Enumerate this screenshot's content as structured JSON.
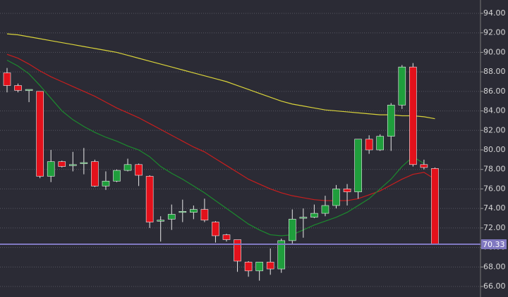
{
  "chart_data": {
    "type": "candlestick",
    "ylim": [
      64.92,
      95.37
    ],
    "yticks": [
      {
        "value": 94,
        "label": "94.00"
      },
      {
        "value": 92,
        "label": "92.00"
      },
      {
        "value": 90,
        "label": "90.00"
      },
      {
        "value": 88,
        "label": "88.00"
      },
      {
        "value": 86,
        "label": "86.00"
      },
      {
        "value": 84,
        "label": "84.00"
      },
      {
        "value": 82,
        "label": "82.00"
      },
      {
        "value": 80,
        "label": "80.00"
      },
      {
        "value": 78,
        "label": "78.00"
      },
      {
        "value": 76,
        "label": "76.00"
      },
      {
        "value": 74,
        "label": "74.00"
      },
      {
        "value": 72,
        "label": "72.00"
      },
      {
        "value": 70,
        "label": "70.00"
      },
      {
        "value": 68,
        "label": "68.00"
      },
      {
        "value": 66,
        "label": "66.00"
      }
    ],
    "grid": true,
    "up_color": "#1f9e3c",
    "down_color": "#e3111b",
    "open": [
      87.9,
      86.6,
      86.2,
      86.0,
      77.3,
      78.8,
      78.5,
      78.7,
      78.8,
      76.3,
      76.8,
      77.9,
      78.5,
      77.3,
      72.8,
      72.9,
      73.7,
      73.6,
      73.9,
      72.6,
      71.3,
      70.8,
      68.5,
      67.6,
      68.5,
      67.8,
      70.7,
      73.1,
      73.1,
      73.5,
      74.3,
      76.0,
      75.7,
      81.1,
      80.0,
      81.4,
      84.6,
      88.5,
      78.5,
      78.1
    ],
    "high": [
      88.4,
      86.8,
      86.2,
      86.0,
      80.0,
      78.9,
      79.8,
      80.2,
      79.0,
      77.8,
      78.0,
      79.1,
      78.6,
      77.4,
      73.2,
      74.4,
      74.9,
      74.3,
      75.0,
      72.7,
      71.4,
      70.8,
      68.6,
      68.5,
      69.9,
      70.9,
      73.9,
      74.0,
      74.4,
      75.3,
      76.4,
      76.5,
      81.1,
      81.5,
      81.6,
      84.8,
      88.7,
      88.9,
      79.0,
      78.2
    ],
    "low": [
      85.9,
      85.9,
      84.9,
      77.1,
      76.7,
      78.2,
      77.8,
      77.5,
      76.2,
      75.9,
      76.7,
      77.8,
      76.3,
      72.0,
      70.6,
      71.8,
      72.6,
      72.9,
      72.6,
      70.5,
      70.6,
      67.5,
      67.0,
      66.6,
      67.2,
      67.4,
      70.4,
      71.0,
      73.0,
      73.2,
      74.0,
      74.3,
      75.0,
      79.6,
      79.9,
      79.9,
      84.2,
      78.3,
      78.0,
      70.3
    ],
    "close": [
      86.6,
      86.1,
      86.2,
      77.3,
      78.8,
      78.3,
      78.5,
      78.7,
      76.3,
      76.8,
      77.9,
      78.5,
      77.4,
      72.6,
      72.8,
      73.4,
      73.7,
      73.9,
      72.8,
      71.2,
      70.8,
      68.6,
      67.6,
      68.5,
      67.8,
      70.7,
      72.9,
      73.1,
      73.5,
      74.3,
      76.0,
      75.7,
      81.1,
      80.0,
      81.4,
      84.6,
      88.5,
      78.5,
      78.2,
      70.3
    ],
    "series": [
      {
        "color": "#d8d23a",
        "values": [
          91.9,
          91.8,
          91.6,
          91.4,
          91.2,
          91.0,
          90.8,
          90.6,
          90.4,
          90.2,
          90.0,
          89.7,
          89.4,
          89.1,
          88.8,
          88.5,
          88.2,
          87.9,
          87.6,
          87.3,
          87.0,
          86.6,
          86.2,
          85.8,
          85.4,
          85.0,
          84.7,
          84.5,
          84.3,
          84.1,
          84.0,
          83.9,
          83.8,
          83.7,
          83.6,
          83.6,
          83.5,
          83.5,
          83.4,
          83.2
        ]
      },
      {
        "color": "#c81e1e",
        "values": [
          89.8,
          89.4,
          88.8,
          88.1,
          87.5,
          87.0,
          86.5,
          86.0,
          85.5,
          84.9,
          84.3,
          83.8,
          83.3,
          82.7,
          82.1,
          81.5,
          80.9,
          80.3,
          79.8,
          79.1,
          78.4,
          77.7,
          77.0,
          76.5,
          76.0,
          75.6,
          75.3,
          75.1,
          74.9,
          74.8,
          74.8,
          74.8,
          75.0,
          75.4,
          75.8,
          76.4,
          77.0,
          77.5,
          77.7,
          77.0
        ]
      },
      {
        "color": "#1c8a2e",
        "values": [
          89.2,
          88.6,
          87.8,
          86.6,
          85.3,
          84.0,
          83.1,
          82.4,
          81.8,
          81.3,
          80.9,
          80.4,
          80.0,
          79.3,
          78.3,
          77.6,
          77.0,
          76.3,
          75.6,
          74.8,
          74.0,
          73.2,
          72.4,
          71.8,
          71.3,
          71.2,
          71.3,
          71.8,
          72.3,
          72.7,
          73.1,
          73.6,
          74.3,
          75.0,
          76.0,
          77.0,
          78.3,
          79.3,
          78.6,
          null
        ]
      }
    ],
    "current_price": 70.33,
    "current_price_color": "#8078c0"
  }
}
